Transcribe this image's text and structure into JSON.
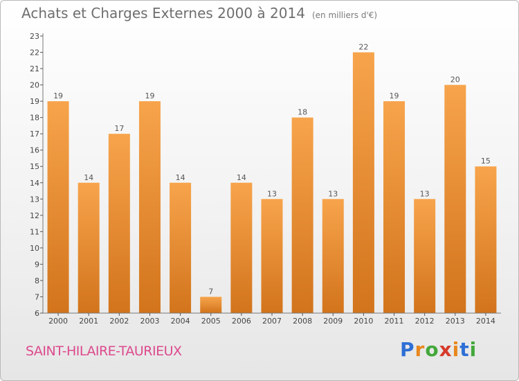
{
  "title": "Achats et Charges Externes 2000 à 2014",
  "unit": "(en milliers d'€)",
  "commune": "SAINT-HILAIRE-TAURIEUX",
  "logo": {
    "text": "Proxiti",
    "letter_colors": [
      "#2e6fd6",
      "#e8871e",
      "#43a83a",
      "#d63a2a",
      "#e8871e",
      "#2e6fd6",
      "#43a83a"
    ]
  },
  "colors": {
    "bar_light": "#f7a44c",
    "bar_dark": "#d2741c",
    "axis": "#777777",
    "grid_tick": "#555555"
  },
  "chart_data": {
    "type": "bar",
    "title": "Achats et Charges Externes 2000 à 2014",
    "xlabel": "",
    "ylabel": "",
    "ylim": [
      6,
      23
    ],
    "yticks": [
      6,
      7,
      8,
      9,
      10,
      11,
      12,
      13,
      14,
      15,
      16,
      17,
      18,
      19,
      20,
      21,
      22,
      23
    ],
    "categories": [
      "2000",
      "2001",
      "2002",
      "2003",
      "2004",
      "2005",
      "2006",
      "2007",
      "2008",
      "2009",
      "2010",
      "2011",
      "2012",
      "2013",
      "2014"
    ],
    "values": [
      19,
      14,
      17,
      19,
      14,
      7,
      14,
      13,
      18,
      13,
      22,
      19,
      13,
      20,
      15
    ],
    "data_labels": true,
    "grid": false
  }
}
